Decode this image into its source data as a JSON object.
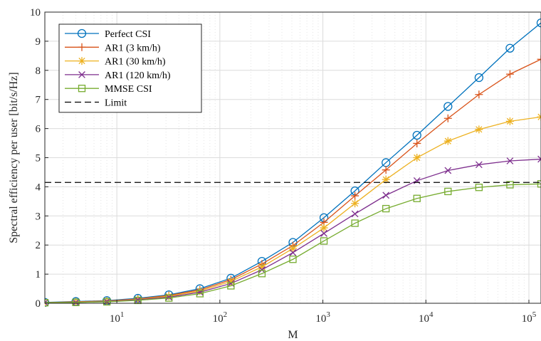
{
  "chart_data": {
    "type": "line",
    "xlabel": "M",
    "ylabel": "Spectral efficiency per user [bit/s/Hz]",
    "x_scale": "log",
    "xlim": [
      2,
      131072
    ],
    "ylim": [
      0,
      10
    ],
    "grid": true,
    "legend_position": "top-left",
    "y_ticks": [
      "0",
      "1",
      "2",
      "3",
      "4",
      "5",
      "6",
      "7",
      "8",
      "9",
      "10"
    ],
    "x_ticks": [
      {
        "base": "10",
        "exp": "1",
        "value": 10
      },
      {
        "base": "10",
        "exp": "2",
        "value": 100
      },
      {
        "base": "10",
        "exp": "3",
        "value": 1000
      },
      {
        "base": "10",
        "exp": "4",
        "value": 10000
      },
      {
        "base": "10",
        "exp": "5",
        "value": 100000
      }
    ],
    "x": [
      2,
      4,
      8,
      16,
      32,
      64,
      128,
      256,
      512,
      1024,
      2048,
      4096,
      8192,
      16384,
      32768,
      65536,
      131072
    ],
    "series": [
      {
        "name": "Perfect CSI",
        "color": "#0072BD",
        "marker": "circle",
        "dash": "solid",
        "values": [
          0.03,
          0.06,
          0.09,
          0.17,
          0.29,
          0.5,
          0.86,
          1.44,
          2.09,
          2.94,
          3.86,
          4.83,
          5.77,
          6.76,
          7.75,
          8.76,
          9.63
        ]
      },
      {
        "name": "AR1 (3 km/h)",
        "color": "#D95319",
        "marker": "plus",
        "dash": "solid",
        "values": [
          0.02,
          0.05,
          0.08,
          0.15,
          0.27,
          0.46,
          0.81,
          1.35,
          1.98,
          2.78,
          3.69,
          4.58,
          5.49,
          6.35,
          7.17,
          7.87,
          8.38
        ]
      },
      {
        "name": "AR1 (30 km/h)",
        "color": "#EDB120",
        "marker": "asterisk",
        "dash": "solid",
        "values": [
          0.02,
          0.04,
          0.07,
          0.13,
          0.24,
          0.42,
          0.75,
          1.25,
          1.88,
          2.59,
          3.43,
          4.25,
          5.0,
          5.57,
          5.97,
          6.25,
          6.4
        ]
      },
      {
        "name": "AR1 (120 km/h)",
        "color": "#7E2F8E",
        "marker": "x",
        "dash": "solid",
        "values": [
          0.02,
          0.03,
          0.06,
          0.12,
          0.21,
          0.38,
          0.68,
          1.15,
          1.74,
          2.4,
          3.07,
          3.71,
          4.21,
          4.56,
          4.76,
          4.89,
          4.95
        ]
      },
      {
        "name": "MMSE CSI",
        "color": "#77AC30",
        "marker": "square",
        "dash": "solid",
        "values": [
          0.02,
          0.03,
          0.05,
          0.1,
          0.18,
          0.33,
          0.6,
          1.02,
          1.51,
          2.14,
          2.75,
          3.25,
          3.6,
          3.84,
          3.98,
          4.07,
          4.1
        ]
      },
      {
        "name": "Limit",
        "color": "#000000",
        "marker": "none",
        "dash": "dashed",
        "values": [
          4.15,
          4.15,
          4.15,
          4.15,
          4.15,
          4.15,
          4.15,
          4.15,
          4.15,
          4.15,
          4.15,
          4.15,
          4.15,
          4.15,
          4.15,
          4.15,
          4.15
        ]
      }
    ]
  }
}
